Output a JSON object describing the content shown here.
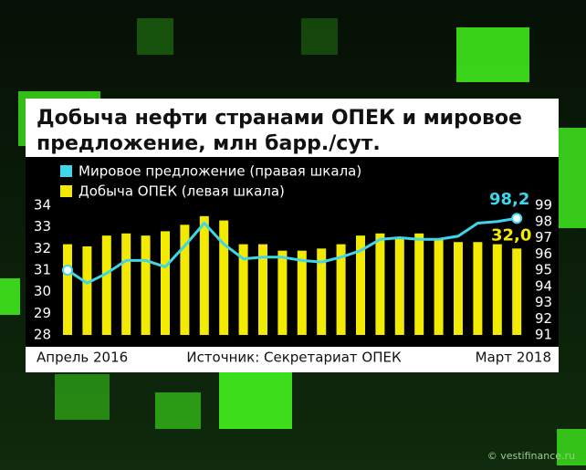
{
  "chart_data": {
    "type": "bar",
    "title": "Добыча нефти странами ОПЕК и мировое предложение, млн барр./сут.",
    "source": "Источник: Секретариат ОПЕК",
    "watermark": "© vestifinance.ru",
    "categories": [
      "Апрель 2016",
      null,
      null,
      null,
      null,
      null,
      null,
      null,
      null,
      null,
      null,
      null,
      null,
      null,
      null,
      null,
      null,
      null,
      null,
      null,
      null,
      null,
      null,
      "Март 2018"
    ],
    "series": [
      {
        "name": "Мировое предложение (правая шкала)",
        "type": "line",
        "axis": "y2",
        "color": "#3fd6ea",
        "values": [
          95.0,
          94.2,
          94.8,
          95.6,
          95.6,
          95.2,
          96.5,
          97.9,
          96.6,
          95.7,
          95.8,
          95.8,
          95.6,
          95.5,
          95.8,
          96.2,
          96.9,
          97.0,
          96.9,
          96.9,
          97.1,
          97.9,
          98.0,
          98.2
        ],
        "value_labels": [
          null,
          null,
          null,
          null,
          null,
          null,
          null,
          null,
          null,
          null,
          null,
          null,
          null,
          null,
          null,
          null,
          null,
          null,
          null,
          null,
          null,
          null,
          null,
          "98,2"
        ]
      },
      {
        "name": "Добыча ОПЕК (левая шкала)",
        "type": "bar",
        "color": "#f2ea00",
        "values": [
          32.2,
          32.1,
          32.6,
          32.7,
          32.6,
          32.8,
          33.1,
          33.5,
          33.3,
          32.2,
          32.2,
          31.9,
          31.9,
          32.0,
          32.2,
          32.6,
          32.7,
          32.5,
          32.7,
          32.4,
          32.3,
          32.3,
          32.2,
          32.0
        ],
        "value_labels": [
          null,
          null,
          null,
          null,
          null,
          null,
          null,
          null,
          null,
          null,
          null,
          null,
          null,
          null,
          null,
          null,
          null,
          null,
          null,
          null,
          null,
          null,
          null,
          "32,0"
        ]
      }
    ],
    "ylim": [
      28,
      34
    ],
    "yticks": [
      28,
      29,
      30,
      31,
      32,
      33,
      34
    ],
    "y2lim": [
      91,
      99
    ],
    "y2ticks": [
      91,
      92,
      93,
      94,
      95,
      96,
      97,
      98,
      99
    ],
    "grid": false
  }
}
